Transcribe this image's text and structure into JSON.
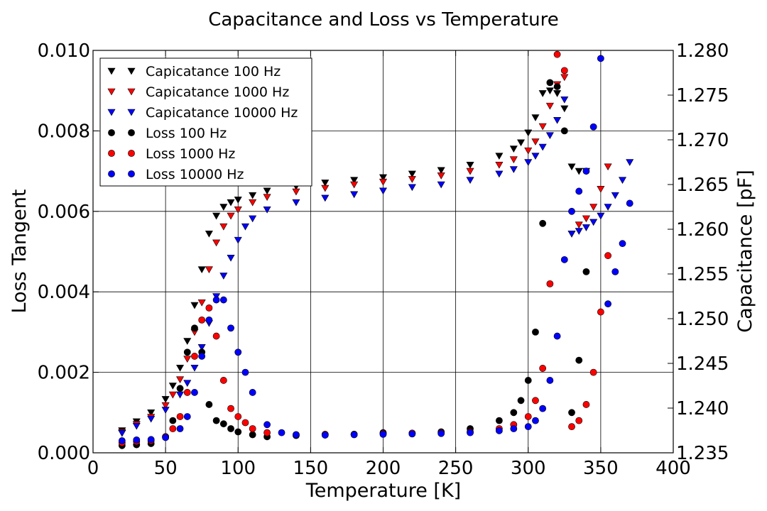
{
  "chart_data": {
    "type": "scatter",
    "title": "Capacitance and Loss vs Temperature",
    "xlabel": "Temperature [K]",
    "ylabel_left": "Loss Tangent",
    "ylabel_right": "Capacitance [pF]",
    "xlim": [
      0,
      400
    ],
    "ylim_left": [
      0.0,
      0.01
    ],
    "ylim_right": [
      1.235,
      1.28
    ],
    "x_ticks": [
      "0",
      "50",
      "100",
      "150",
      "200",
      "250",
      "300",
      "350",
      "400"
    ],
    "y_left_ticks": [
      "0.000",
      "0.002",
      "0.004",
      "0.006",
      "0.008",
      "0.010"
    ],
    "y_right_ticks": [
      "1.235",
      "1.240",
      "1.245",
      "1.250",
      "1.255",
      "1.260",
      "1.265",
      "1.270",
      "1.275",
      "1.280"
    ],
    "grid": true,
    "legend_position": "top-left",
    "series": [
      {
        "name": "Capicatance 100 Hz",
        "axis": "right",
        "marker": "triangle-down",
        "color": "#000000",
        "x": [
          20,
          30,
          40,
          50,
          55,
          60,
          65,
          70,
          75,
          80,
          85,
          90,
          95,
          100,
          110,
          120,
          140,
          160,
          180,
          200,
          220,
          240,
          260,
          280,
          290,
          295,
          300,
          305,
          310,
          315,
          320,
          325,
          330,
          335,
          340
        ],
        "y": [
          1.2375,
          1.2385,
          1.2395,
          1.241,
          1.2425,
          1.2445,
          1.2475,
          1.2515,
          1.2555,
          1.2595,
          1.2615,
          1.2625,
          1.263,
          1.2633,
          1.2638,
          1.2643,
          1.2648,
          1.2652,
          1.2655,
          1.2658,
          1.2662,
          1.2666,
          1.2672,
          1.2682,
          1.269,
          1.2697,
          1.2708,
          1.2725,
          1.2752,
          1.2755,
          1.2752,
          1.2735,
          1.267,
          1.2665,
          1.2665
        ]
      },
      {
        "name": "Capicatance 1000 Hz",
        "axis": "right",
        "marker": "triangle-down",
        "color": "#ff0000",
        "x": [
          20,
          30,
          40,
          50,
          55,
          60,
          65,
          70,
          75,
          80,
          85,
          90,
          95,
          100,
          110,
          120,
          140,
          160,
          180,
          200,
          220,
          240,
          260,
          280,
          290,
          300,
          305,
          310,
          315,
          320,
          325,
          330,
          335,
          340,
          345,
          350,
          355
        ],
        "y": [
          1.2373,
          1.2382,
          1.239,
          1.2403,
          1.2415,
          1.2432,
          1.2455,
          1.2485,
          1.2518,
          1.2555,
          1.2585,
          1.2603,
          1.2615,
          1.2622,
          1.263,
          1.2636,
          1.2642,
          1.2646,
          1.265,
          1.2653,
          1.2656,
          1.266,
          1.2665,
          1.2672,
          1.2678,
          1.2688,
          1.2698,
          1.2715,
          1.2738,
          1.2762,
          1.277,
          1.2595,
          1.2605,
          1.2612,
          1.2625,
          1.2645,
          1.267
        ]
      },
      {
        "name": "Capicatance 10000 Hz",
        "axis": "right",
        "marker": "triangle-down",
        "color": "#0000ff",
        "x": [
          20,
          30,
          40,
          50,
          60,
          65,
          70,
          75,
          80,
          85,
          90,
          95,
          100,
          105,
          110,
          120,
          140,
          160,
          180,
          200,
          220,
          240,
          260,
          280,
          290,
          300,
          305,
          310,
          315,
          320,
          325,
          330,
          335,
          340,
          345,
          350,
          355,
          360,
          365,
          370
        ],
        "y": [
          1.2372,
          1.238,
          1.2388,
          1.2398,
          1.2415,
          1.2428,
          1.2445,
          1.2468,
          1.2495,
          1.2525,
          1.2548,
          1.2568,
          1.2588,
          1.2603,
          1.2612,
          1.2622,
          1.263,
          1.2635,
          1.2639,
          1.2643,
          1.2647,
          1.265,
          1.2655,
          1.2662,
          1.2667,
          1.2675,
          1.2682,
          1.2692,
          1.2705,
          1.2722,
          1.2745,
          1.2595,
          1.2598,
          1.2602,
          1.2608,
          1.2615,
          1.2625,
          1.2638,
          1.2655,
          1.2675
        ]
      },
      {
        "name": "Loss 100 Hz",
        "axis": "left",
        "marker": "circle",
        "color": "#000000",
        "x": [
          20,
          30,
          40,
          50,
          55,
          60,
          65,
          70,
          75,
          80,
          85,
          90,
          95,
          100,
          110,
          120,
          140,
          160,
          180,
          200,
          220,
          240,
          260,
          280,
          290,
          295,
          300,
          305,
          310,
          315,
          320,
          325,
          330,
          335,
          340
        ],
        "y": [
          0.00018,
          0.0002,
          0.00023,
          0.0004,
          0.0008,
          0.0016,
          0.0025,
          0.0031,
          0.0025,
          0.0012,
          0.0008,
          0.00072,
          0.0006,
          0.00052,
          0.00045,
          0.0004,
          0.00043,
          0.00045,
          0.00046,
          0.0005,
          0.00048,
          0.00052,
          0.0006,
          0.0008,
          0.001,
          0.0013,
          0.0018,
          0.003,
          0.0057,
          0.0092,
          0.0091,
          0.008,
          0.001,
          0.0023,
          0.0045
        ]
      },
      {
        "name": "Loss 1000 Hz",
        "axis": "left",
        "marker": "circle",
        "color": "#ff0000",
        "x": [
          20,
          30,
          40,
          50,
          55,
          60,
          65,
          70,
          75,
          80,
          85,
          90,
          95,
          100,
          105,
          110,
          120,
          140,
          160,
          180,
          200,
          220,
          240,
          260,
          280,
          290,
          300,
          305,
          310,
          315,
          320,
          325,
          330,
          335,
          340,
          345,
          350,
          355
        ],
        "y": [
          0.00025,
          0.00028,
          0.0003,
          0.0004,
          0.0006,
          0.0009,
          0.0015,
          0.0024,
          0.0033,
          0.0036,
          0.0029,
          0.0018,
          0.0011,
          0.0009,
          0.00075,
          0.0006,
          0.0005,
          0.00045,
          0.00046,
          0.00046,
          0.00048,
          0.00049,
          0.0005,
          0.00052,
          0.0006,
          0.0007,
          0.0009,
          0.0013,
          0.0021,
          0.0042,
          0.0099,
          0.0095,
          0.00065,
          0.0008,
          0.0012,
          0.002,
          0.0035,
          0.0049
        ]
      },
      {
        "name": "Loss 10000 Hz",
        "axis": "left",
        "marker": "circle",
        "color": "#0000ff",
        "x": [
          20,
          30,
          40,
          50,
          60,
          65,
          70,
          75,
          80,
          85,
          90,
          95,
          100,
          105,
          110,
          120,
          130,
          140,
          160,
          180,
          200,
          220,
          240,
          260,
          280,
          290,
          300,
          305,
          310,
          315,
          320,
          325,
          330,
          335,
          340,
          345,
          350,
          355,
          360,
          365,
          370
        ],
        "y": [
          0.0003,
          0.00032,
          0.00033,
          0.00038,
          0.0006,
          0.0009,
          0.0015,
          0.0024,
          0.0033,
          0.0038,
          0.0038,
          0.0031,
          0.0025,
          0.002,
          0.0015,
          0.0007,
          0.0005,
          0.00045,
          0.00044,
          0.00045,
          0.00046,
          0.00047,
          0.00048,
          0.0005,
          0.00055,
          0.0006,
          0.00065,
          0.0008,
          0.0011,
          0.0018,
          0.0029,
          0.0048,
          0.006,
          0.0065,
          0.007,
          0.0081,
          0.0098,
          0.0037,
          0.0045,
          0.0052,
          0.0062
        ]
      }
    ]
  }
}
